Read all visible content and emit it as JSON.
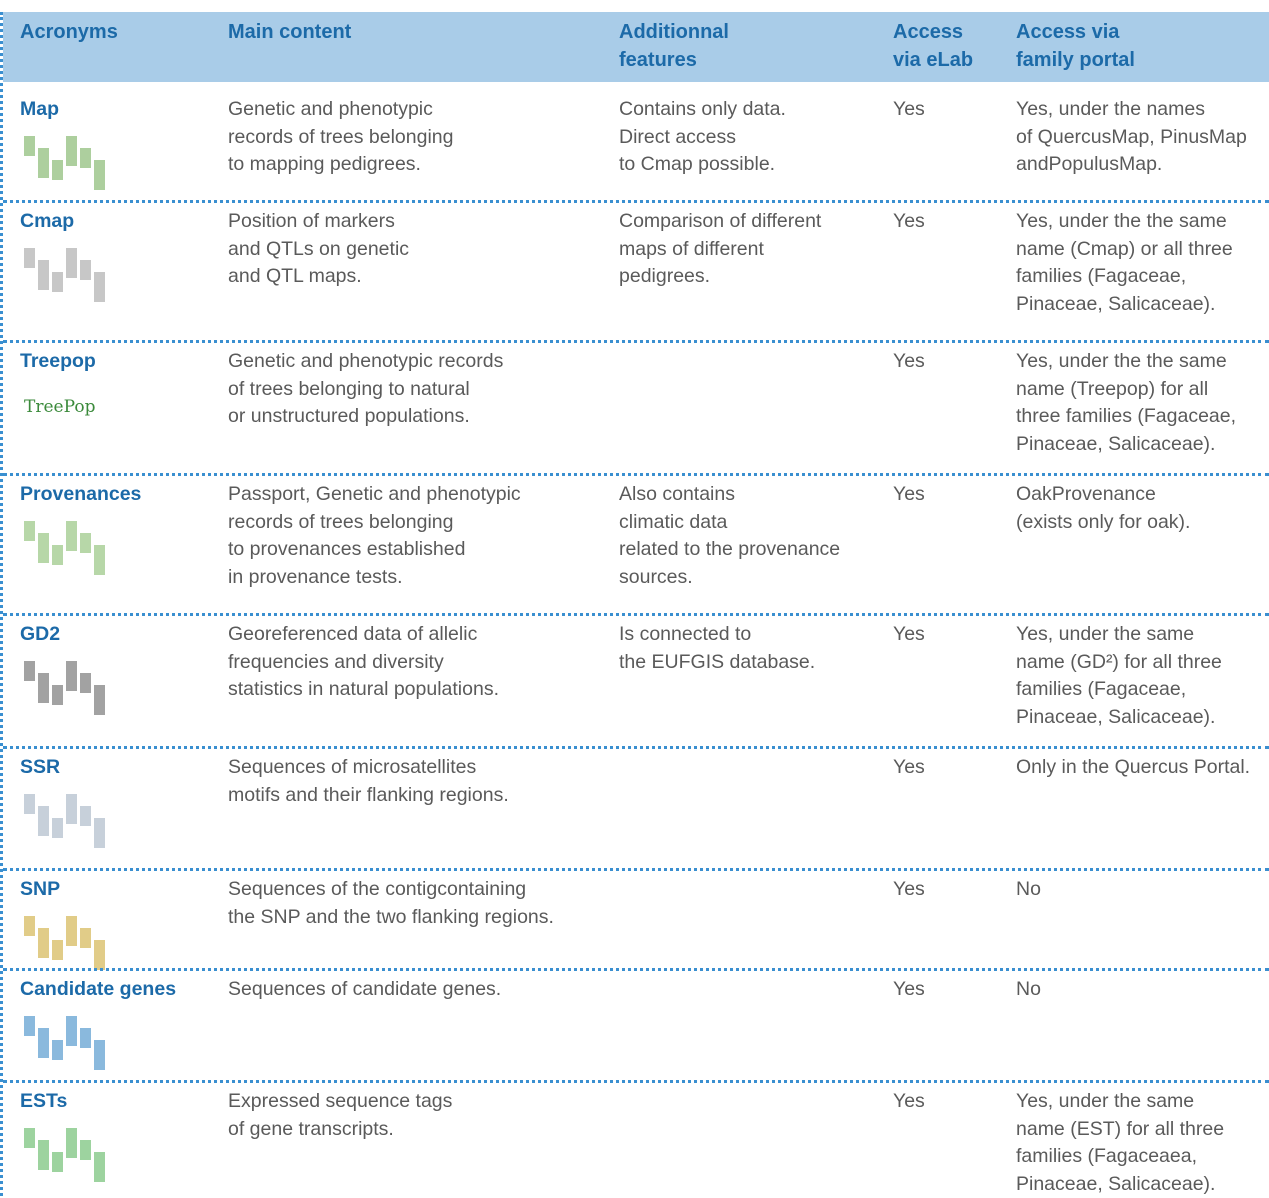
{
  "table": {
    "header": [
      [
        "Acronyms"
      ],
      [
        "Main content"
      ],
      [
        "Additionnal",
        "features"
      ],
      [
        "Access",
        "via eLab"
      ],
      [
        "Access via",
        "family portal"
      ]
    ],
    "rows": [
      {
        "acronym": "Map",
        "main": [
          "Genetic and phenotypic",
          "records of trees belonging",
          "to mapping pedigrees."
        ],
        "features": [
          "Contains only data.",
          "Direct access",
          "to Cmap possible."
        ],
        "elab": "Yes",
        "portal": [
          "Yes, under the names",
          "of QuercusMap, PinusMap",
          "andPopulusMap."
        ]
      },
      {
        "acronym": "Cmap",
        "main": [
          "Position of markers",
          "and QTLs on genetic",
          "and QTL maps."
        ],
        "features": [
          "Comparison of different",
          "maps of different",
          "pedigrees."
        ],
        "elab": "Yes",
        "portal": [
          "Yes, under the the same",
          "name (Cmap) or all three",
          "families (Fagaceae,",
          "Pinaceae, Salicaceae)."
        ]
      },
      {
        "acronym": "Treepop",
        "icon_text": "TreePop",
        "main": [
          "Genetic and phenotypic records",
          "of trees belonging to natural",
          "or unstructured populations."
        ],
        "features": [],
        "elab": "Yes",
        "portal": [
          "Yes, under the the same",
          "name (Treepop) for all",
          "three families (Fagaceae,",
          "Pinaceae, Salicaceae)."
        ]
      },
      {
        "acronym": "Provenances",
        "main": [
          "Passport, Genetic and phenotypic",
          "records of trees belonging",
          "to provenances established",
          "in provenance tests."
        ],
        "features": [
          "Also contains",
          "climatic data",
          "related to the provenance",
          "sources."
        ],
        "elab": "Yes",
        "portal": [
          "OakProvenance",
          "(exists only for oak)."
        ]
      },
      {
        "acronym": "GD2",
        "main": [
          "Georeferenced data of allelic",
          "frequencies and diversity",
          "statistics in natural populations."
        ],
        "features": [
          "Is connected to",
          "the EUFGIS database."
        ],
        "elab": "Yes",
        "portal": [
          "Yes, under the same",
          "name (GD²) for all three",
          "families (Fagaceae,",
          "Pinaceae, Salicaceae)."
        ]
      },
      {
        "acronym": "SSR",
        "main": [
          "Sequences of microsatellites",
          "motifs and their flanking regions."
        ],
        "features": [],
        "elab": "Yes",
        "portal": [
          "Only in the Quercus Portal."
        ]
      },
      {
        "acronym": "SNP",
        "main": [
          "Sequences of the contigcontaining",
          "the SNP and the two flanking regions."
        ],
        "features": [],
        "elab": "Yes",
        "portal": [
          "No"
        ]
      },
      {
        "acronym": "Candidate genes",
        "main": [
          "Sequences of candidate genes."
        ],
        "features": [],
        "elab": "Yes",
        "portal": [
          "No"
        ]
      },
      {
        "acronym": "ESTs",
        "main": [
          "Expressed sequence tags",
          "of gene transcripts."
        ],
        "features": [],
        "elab": "Yes",
        "portal": [
          "Yes, under the same",
          "name (EST) for all three",
          "families (Fagaceaea,",
          "Pinaceae, Salicaceae)."
        ]
      }
    ]
  }
}
